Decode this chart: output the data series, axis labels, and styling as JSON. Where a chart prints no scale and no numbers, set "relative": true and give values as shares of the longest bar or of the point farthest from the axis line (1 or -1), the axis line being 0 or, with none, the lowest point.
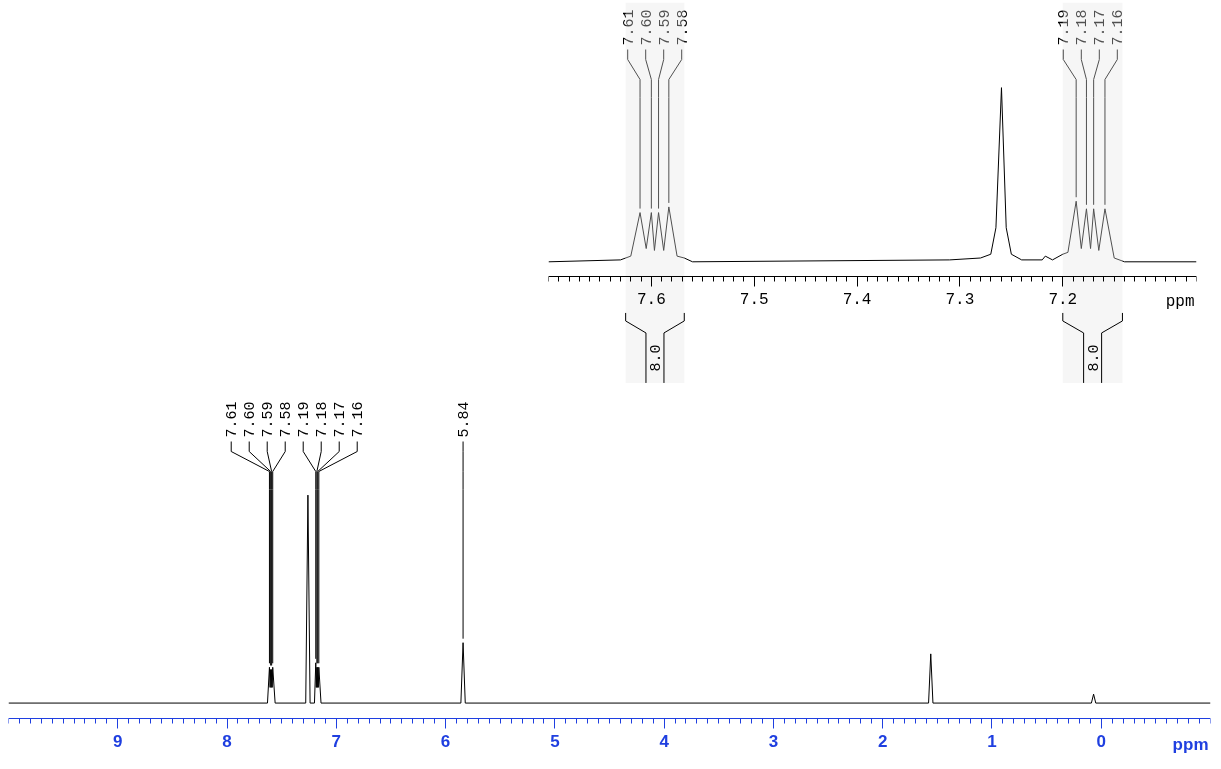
{
  "chart_data": [
    {
      "type": "line",
      "relative": true,
      "color": "#000000",
      "xlabel": "ppm",
      "xlim": [
        10.0,
        -1.0
      ],
      "xticks": [
        9,
        8,
        7,
        6,
        5,
        4,
        3,
        2,
        1,
        0
      ],
      "tick_labels": "x",
      "x": [
        10.0,
        7.63,
        7.612,
        7.606,
        7.601,
        7.596,
        7.592,
        7.587,
        7.582,
        7.56,
        7.28,
        7.26,
        7.24,
        7.2,
        7.188,
        7.183,
        7.178,
        7.174,
        7.17,
        7.165,
        7.16,
        7.14,
        5.86,
        5.84,
        5.82,
        1.58,
        1.56,
        1.54,
        0.09,
        0.07,
        0.05,
        -1.0
      ],
      "values": [
        0.07,
        0.07,
        0.23,
        0.14,
        0.22,
        0.14,
        0.22,
        0.14,
        0.23,
        0.07,
        0.07,
        1,
        0.07,
        0.07,
        0.25,
        0.14,
        0.23,
        0.14,
        0.23,
        0.14,
        0.23,
        0.07,
        0.07,
        0.34,
        0.07,
        0.07,
        0.29,
        0.07,
        0.07,
        0.11,
        0.07,
        0.07
      ],
      "annotations": [
        {
          "text": "7.61",
          "x": 7.612,
          "y": 0.23
        },
        {
          "text": "7.60",
          "x": 7.601,
          "y": 0.22
        },
        {
          "text": "7.59",
          "x": 7.592,
          "y": 0.22
        },
        {
          "text": "7.58",
          "x": 7.582,
          "y": 0.23
        },
        {
          "text": "7.19",
          "x": 7.188,
          "y": 0.25
        },
        {
          "text": "7.18",
          "x": 7.178,
          "y": 0.23
        },
        {
          "text": "7.17",
          "x": 7.17,
          "y": 0.23
        },
        {
          "text": "7.16",
          "x": 7.16,
          "y": 0.23
        },
        {
          "text": "5.84",
          "x": 5.84,
          "y": 0.34
        }
      ]
    },
    {
      "type": "line",
      "relative": true,
      "color": "#000000",
      "xlabel": "ppm",
      "xlim": [
        7.7,
        7.07
      ],
      "xticks": [
        7.6,
        7.5,
        7.4,
        7.3,
        7.2
      ],
      "tick_labels": "x",
      "x": [
        7.7,
        7.63,
        7.625,
        7.62,
        7.611,
        7.605,
        7.6,
        7.597,
        7.593,
        7.588,
        7.583,
        7.575,
        7.568,
        7.56,
        7.31,
        7.28,
        7.27,
        7.265,
        7.2596,
        7.255,
        7.25,
        7.24,
        7.22,
        7.217,
        7.21,
        7.2,
        7.195,
        7.187,
        7.182,
        7.177,
        7.173,
        7.17,
        7.165,
        7.159,
        7.15,
        7.14,
        7.07
      ],
      "values": [
        0.08,
        0.09,
        0.1,
        0.11,
        0.34,
        0.15,
        0.34,
        0.14,
        0.34,
        0.14,
        0.37,
        0.11,
        0.1,
        0.08,
        0.09,
        0.1,
        0.12,
        0.26,
        1,
        0.26,
        0.12,
        0.09,
        0.09,
        0.11,
        0.09,
        0.12,
        0.13,
        0.4,
        0.15,
        0.36,
        0.15,
        0.36,
        0.14,
        0.36,
        0.1,
        0.08,
        0.08
      ],
      "annotations": [
        {
          "text": "7.61",
          "x": 7.611,
          "y": 0.34
        },
        {
          "text": "7.60",
          "x": 7.6,
          "y": 0.34
        },
        {
          "text": "7.59",
          "x": 7.593,
          "y": 0.34
        },
        {
          "text": "7.58",
          "x": 7.583,
          "y": 0.37
        },
        {
          "text": "7.19",
          "x": 7.187,
          "y": 0.4
        },
        {
          "text": "7.18",
          "x": 7.177,
          "y": 0.36
        },
        {
          "text": "7.17",
          "x": 7.17,
          "y": 0.36
        },
        {
          "text": "7.16",
          "x": 7.159,
          "y": 0.36
        }
      ],
      "bands": [
        {
          "axis": "x",
          "from": 7.625,
          "to": 7.568,
          "label": "8.0"
        },
        {
          "axis": "x",
          "from": 7.2,
          "to": 7.142,
          "label": "8.0"
        }
      ]
    }
  ]
}
